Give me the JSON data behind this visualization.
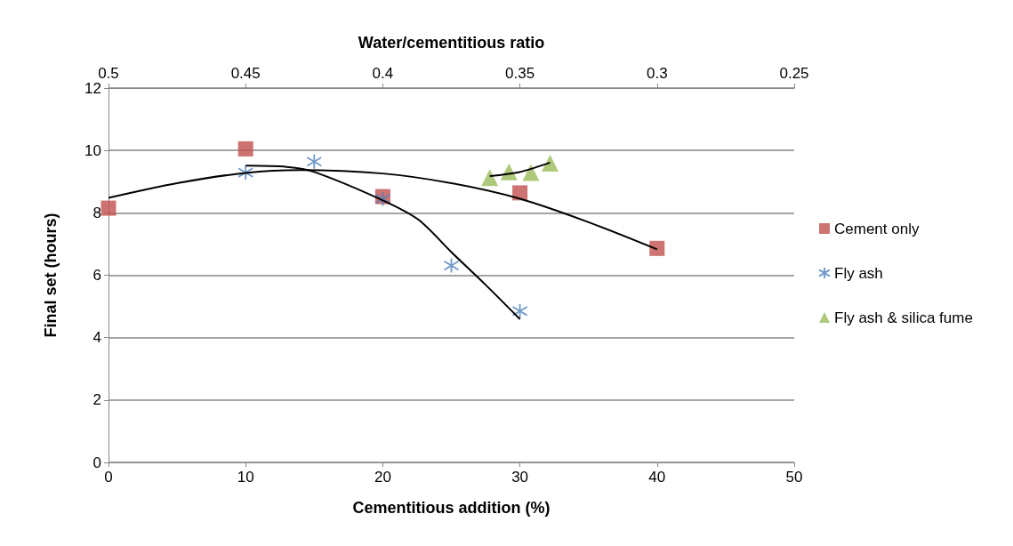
{
  "chart_data": {
    "type": "scatter",
    "xlabel": "Cementitious addition (%)",
    "ylabel": "Final set (hours)",
    "x2label": "Water/cementitious ratio",
    "xlim": [
      0,
      50
    ],
    "xticks": [
      0,
      10,
      20,
      30,
      40,
      50
    ],
    "x2lim": [
      0.5,
      0.25
    ],
    "x2ticks": [
      0.5,
      0.45,
      0.4,
      0.35,
      0.3,
      0.25
    ],
    "ylim": [
      0,
      12
    ],
    "yticks": [
      0,
      2,
      4,
      6,
      8,
      10,
      12
    ],
    "grid": "y",
    "legend": "right",
    "series": [
      {
        "name": "Cement only",
        "marker": "square",
        "color": "#c0504d",
        "x": [
          0,
          10,
          20,
          30,
          40
        ],
        "values": [
          8.15,
          10.05,
          8.52,
          8.64,
          6.86
        ]
      },
      {
        "name": "Fly ash",
        "marker": "cross",
        "color": "#4f81bd",
        "x": [
          10,
          15,
          20,
          25,
          30
        ],
        "values": [
          9.29,
          9.64,
          8.45,
          6.31,
          4.85
        ]
      },
      {
        "name": "Fly ash & silica fume",
        "marker": "triangle",
        "color": "#9bbb59",
        "axis": "x2",
        "x": [
          0.361,
          0.354,
          0.346,
          0.339
        ],
        "values": [
          9.13,
          9.31,
          9.29,
          9.59
        ]
      },
      {
        "type": "line",
        "marker": "none",
        "color": "#000000",
        "x": [
          0,
          5,
          10,
          14,
          20,
          25,
          30,
          35,
          40
        ],
        "values": [
          8.48,
          8.95,
          9.28,
          9.37,
          9.26,
          8.95,
          8.45,
          7.7,
          6.83
        ]
      },
      {
        "type": "line",
        "marker": "none",
        "color": "#000000",
        "x": [
          10,
          13,
          15,
          20,
          22.6,
          25,
          27.5,
          30
        ],
        "values": [
          9.51,
          9.47,
          9.31,
          8.4,
          7.78,
          6.74,
          5.69,
          4.59
        ]
      },
      {
        "type": "line",
        "marker": "none",
        "color": "#000000",
        "axis": "x2",
        "x": [
          0.361,
          0.3505,
          0.339
        ],
        "values": [
          9.18,
          9.3,
          9.61
        ]
      }
    ]
  }
}
